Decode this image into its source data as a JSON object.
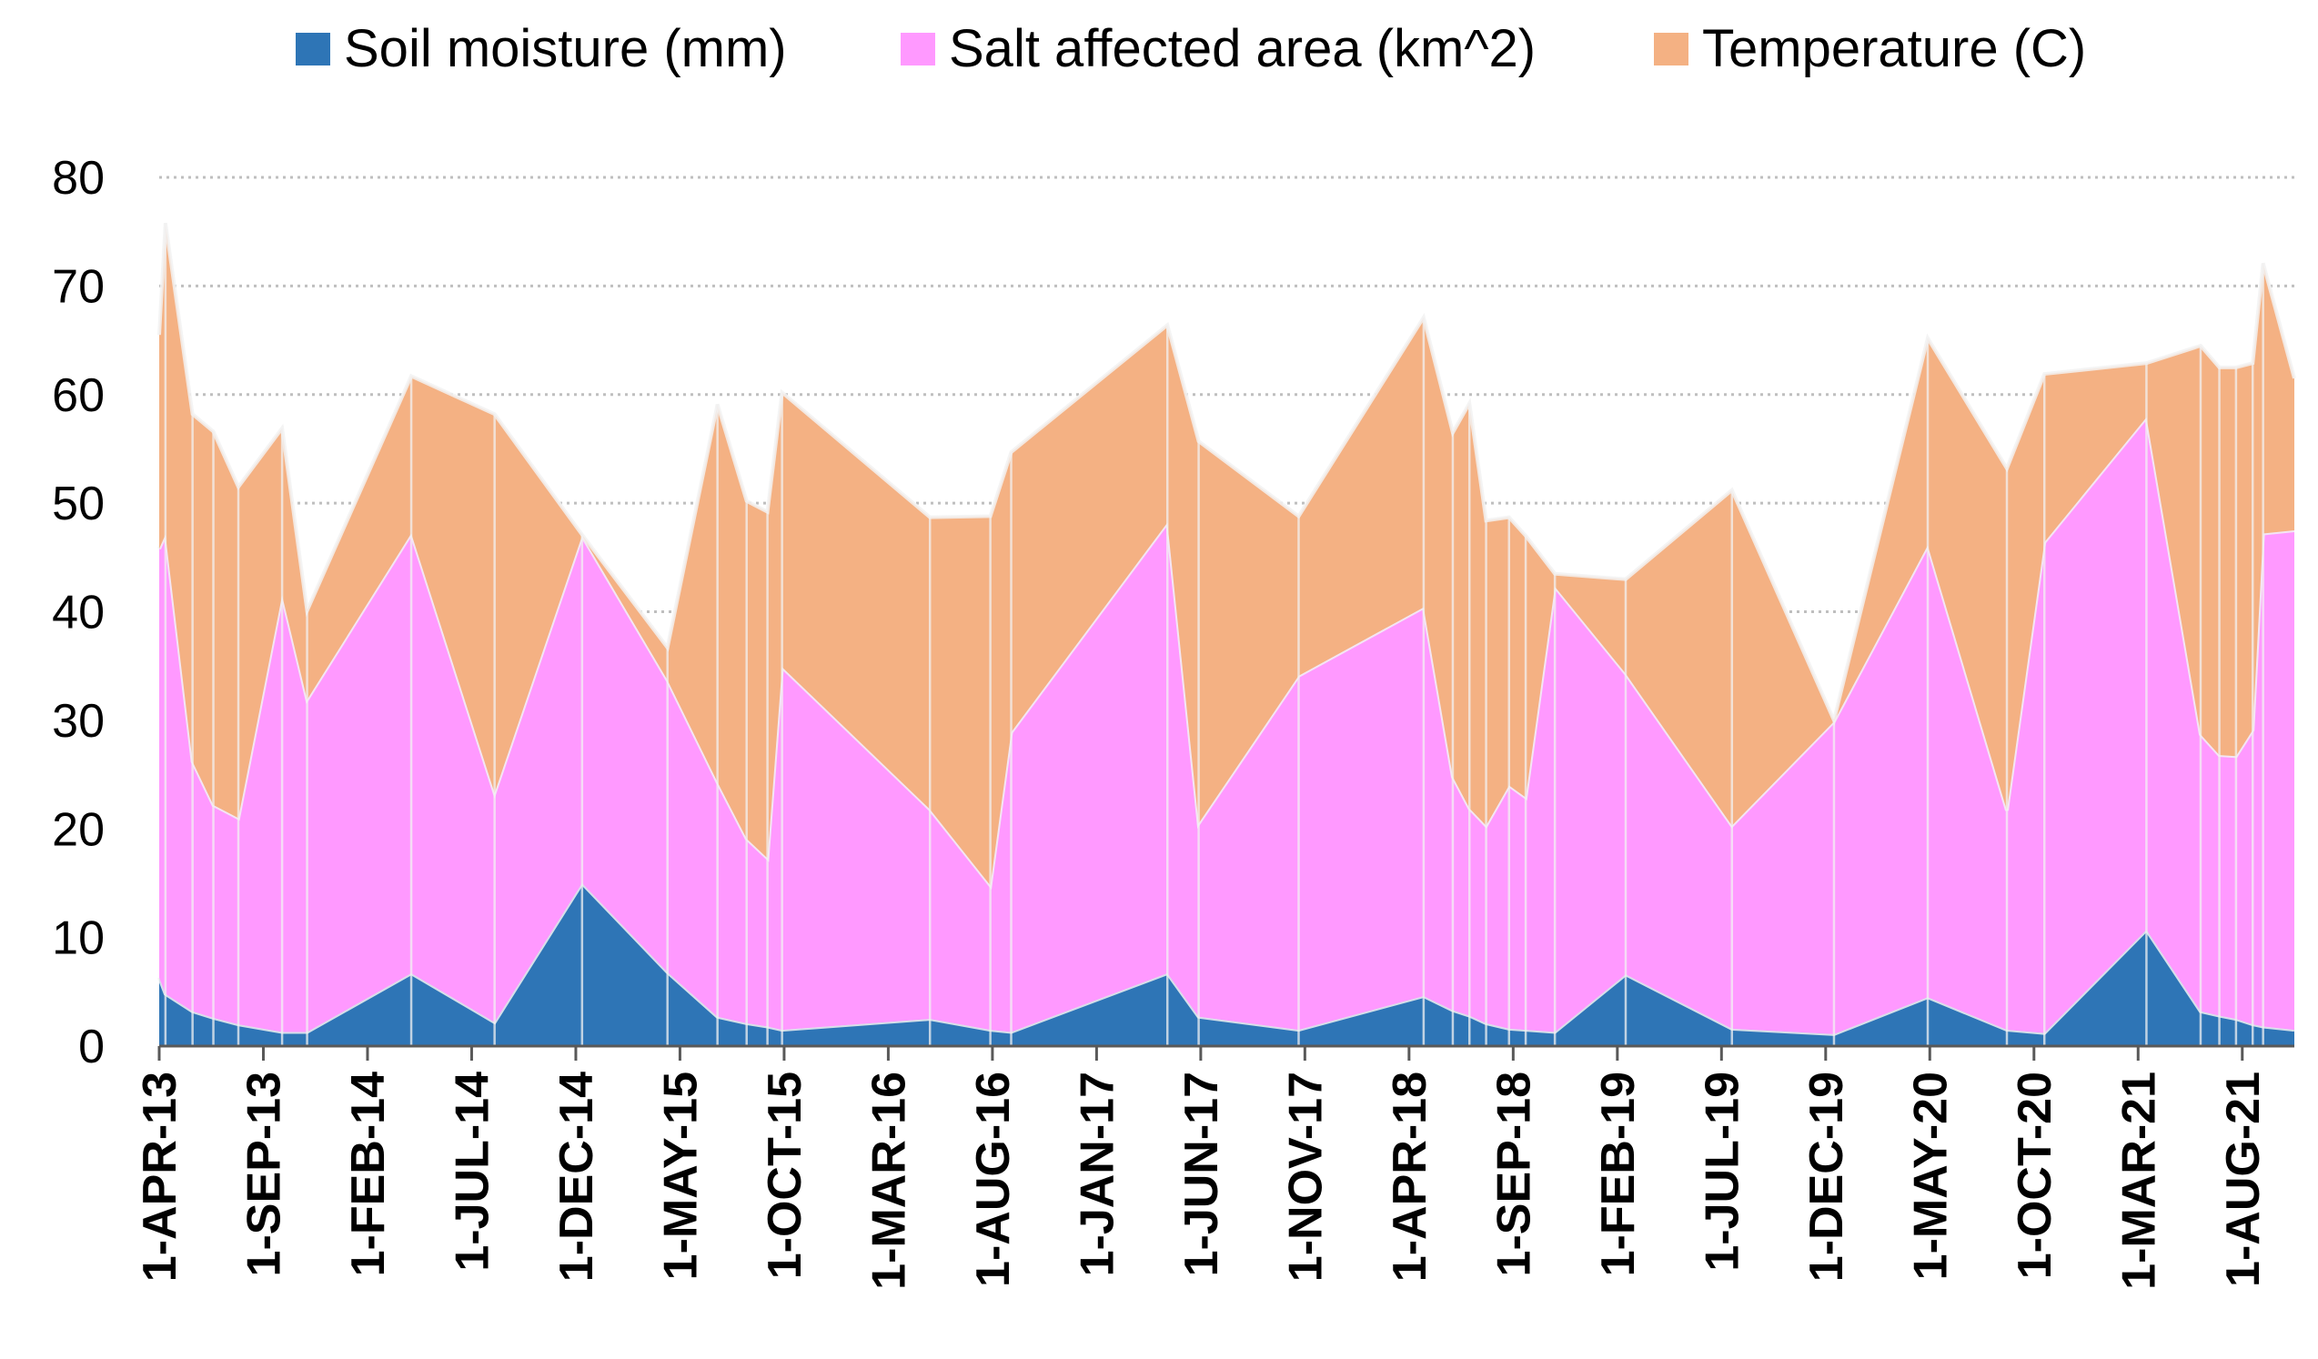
{
  "chart_data": {
    "type": "area",
    "stacked": true,
    "title": "",
    "xlabel": "",
    "ylabel": "",
    "ylim": [
      0,
      80
    ],
    "yticks": [
      "0",
      "10",
      "20",
      "30",
      "40",
      "50",
      "60",
      "70",
      "80"
    ],
    "grid": true,
    "legend_position": "top",
    "colors": {
      "Soil moisture (mm)": "#2e75b6",
      "Salt affected area (km^2)": "#ff99ff",
      "Temperature (C)": "#f4b183",
      "divider": "#f2f2f2",
      "gridline": "#bfbfbf",
      "axis": "#595959"
    },
    "x_tick_labels": [
      "1-APR-13",
      "1-SEP-13",
      "1-FEB-14",
      "1-JUL-14",
      "1-DEC-14",
      "1-MAY-15",
      "1-OCT-15",
      "1-MAR-16",
      "1-AUG-16",
      "1-JAN-17",
      "1-JUN-17",
      "1-NOV-17",
      "1-APR-18",
      "1-SEP-18",
      "1-FEB-19",
      "1-JUL-19",
      "1-DEC-19",
      "1-MAY-20",
      "1-OCT-20",
      "1-MAR-21",
      "1-AUG-21"
    ],
    "x_tick_months": [
      0,
      5,
      10,
      15,
      20,
      25,
      30,
      35,
      40,
      45,
      50,
      55,
      60,
      65,
      70,
      75,
      80,
      85,
      90,
      95,
      100
    ],
    "x_range_months": [
      0,
      102.5
    ],
    "observation_months": [
      0,
      0.3,
      1.6,
      2.6,
      3.8,
      5.9,
      7.1,
      12.1,
      16.1,
      20.3,
      24.4,
      26.8,
      28.2,
      29.2,
      29.9,
      37.0,
      39.9,
      40.9,
      48.4,
      49.9,
      54.7,
      60.7,
      62.1,
      62.9,
      63.7,
      64.8,
      65.6,
      67.0,
      70.4,
      75.5,
      80.4,
      84.9,
      88.7,
      90.5,
      95.4,
      98.0,
      98.9,
      99.7,
      100.5,
      101.0,
      102.5
    ],
    "series": [
      {
        "name": "Soil moisture (mm)",
        "values": [
          6.3,
          4.8,
          3.2,
          2.6,
          2.0,
          1.3,
          1.3,
          6.7,
          2.2,
          15.0,
          6.8,
          2.7,
          2.1,
          1.8,
          1.5,
          2.5,
          1.5,
          1.3,
          6.7,
          2.7,
          1.5,
          4.6,
          3.3,
          2.8,
          2.1,
          1.6,
          1.5,
          1.3,
          6.6,
          1.6,
          1.1,
          4.5,
          1.5,
          1.2,
          10.7,
          3.2,
          2.8,
          2.5,
          2.0,
          1.8,
          1.5
        ]
      },
      {
        "name": "Salt affected area (km^2)",
        "values": [
          39.5,
          42.3,
          23.0,
          19.6,
          19.0,
          40.2,
          30.6,
          40.5,
          21.1,
          32.0,
          26.9,
          21.6,
          17.0,
          15.5,
          33.4,
          19.3,
          13.3,
          27.6,
          41.5,
          17.8,
          32.6,
          35.8,
          21.5,
          19.1,
          18.2,
          22.4,
          21.4,
          41.0,
          27.7,
          18.7,
          28.8,
          41.6,
          20.2,
          45.2,
          47.2,
          25.5,
          24.0,
          24.2,
          27.1,
          45.4,
          46.0
        ]
      },
      {
        "name": "Temperature (C)",
        "values": [
          19.7,
          28.7,
          32.0,
          34.4,
          30.5,
          15.4,
          8.2,
          14.5,
          34.9,
          0.1,
          3.0,
          34.8,
          31.1,
          31.9,
          25.3,
          26.9,
          34.0,
          25.8,
          18.2,
          35.2,
          14.7,
          26.7,
          31.7,
          37.3,
          28.1,
          24.7,
          24.1,
          1.2,
          8.7,
          30.9,
          0.1,
          19.1,
          31.5,
          15.5,
          5.0,
          35.8,
          35.7,
          35.8,
          33.8,
          24.9,
          14.0
        ]
      }
    ]
  }
}
